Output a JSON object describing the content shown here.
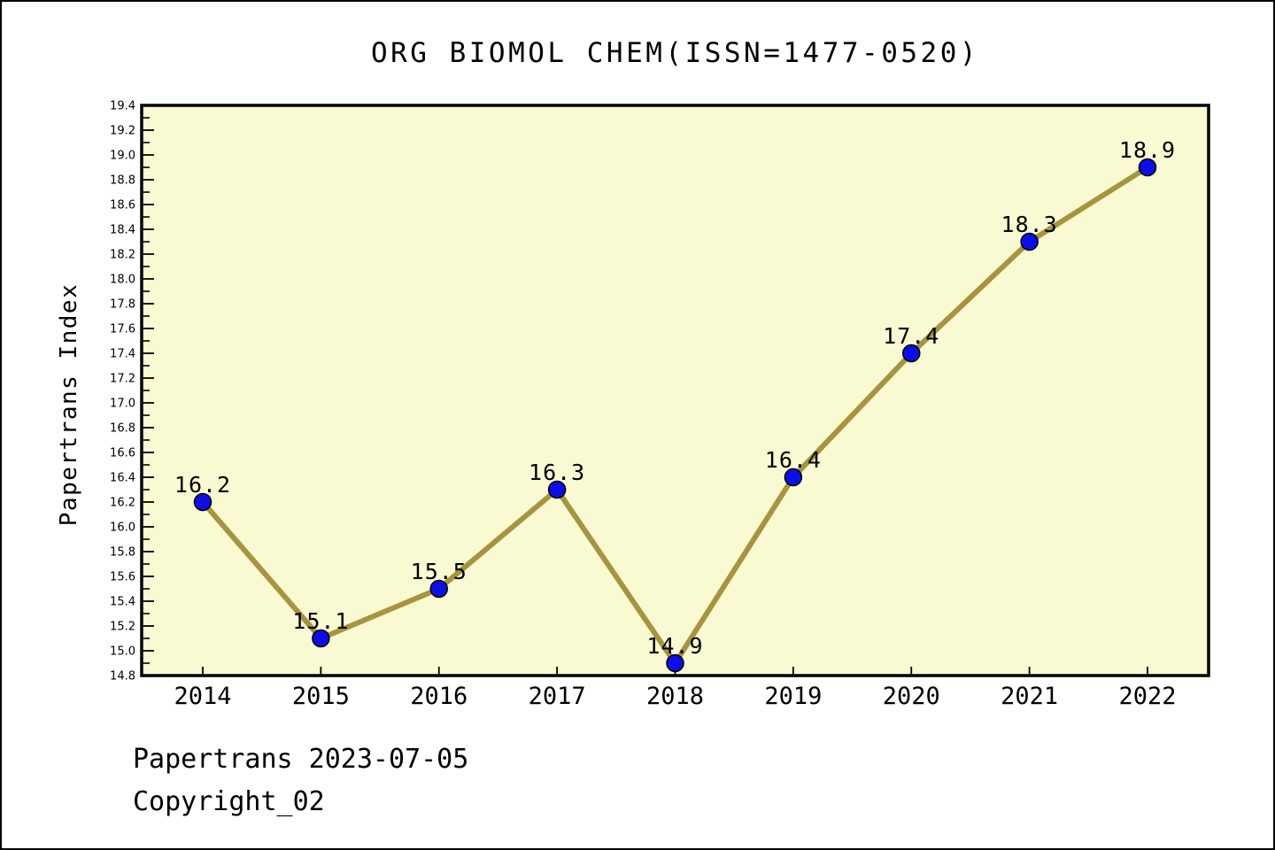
{
  "title": "ORG BIOMOL CHEM(ISSN=1477-0520)",
  "footer": {
    "line1": "Papertrans 2023-07-05",
    "line2": "Copyright_02"
  },
  "colors": {
    "plot_background": "#FAFAD2",
    "line": "#A6943F",
    "marker_fill": "#0D0DE8",
    "marker_edge": "#000000",
    "axis": "#000000",
    "text": "#000000"
  },
  "chart_data": {
    "type": "line",
    "title": "ORG BIOMOL CHEM(ISSN=1477-0520)",
    "xlabel": "",
    "ylabel": "Papertrans Index",
    "categories": [
      "2014",
      "2015",
      "2016",
      "2017",
      "2018",
      "2019",
      "2020",
      "2021",
      "2022"
    ],
    "series": [
      {
        "name": "Papertrans Index",
        "values": [
          16.2,
          15.1,
          15.5,
          16.3,
          14.9,
          16.4,
          17.4,
          18.3,
          18.9
        ]
      }
    ],
    "point_labels": [
      "16.2",
      "15.1",
      "15.5",
      "16.3",
      "14.9",
      "16.4",
      "17.4",
      "18.3",
      "18.9"
    ],
    "ylim": [
      14.8,
      19.4
    ],
    "ytick_step": 0.2,
    "yminor_step": 0.1,
    "grid": false,
    "legend": "none",
    "marker": "circle"
  }
}
